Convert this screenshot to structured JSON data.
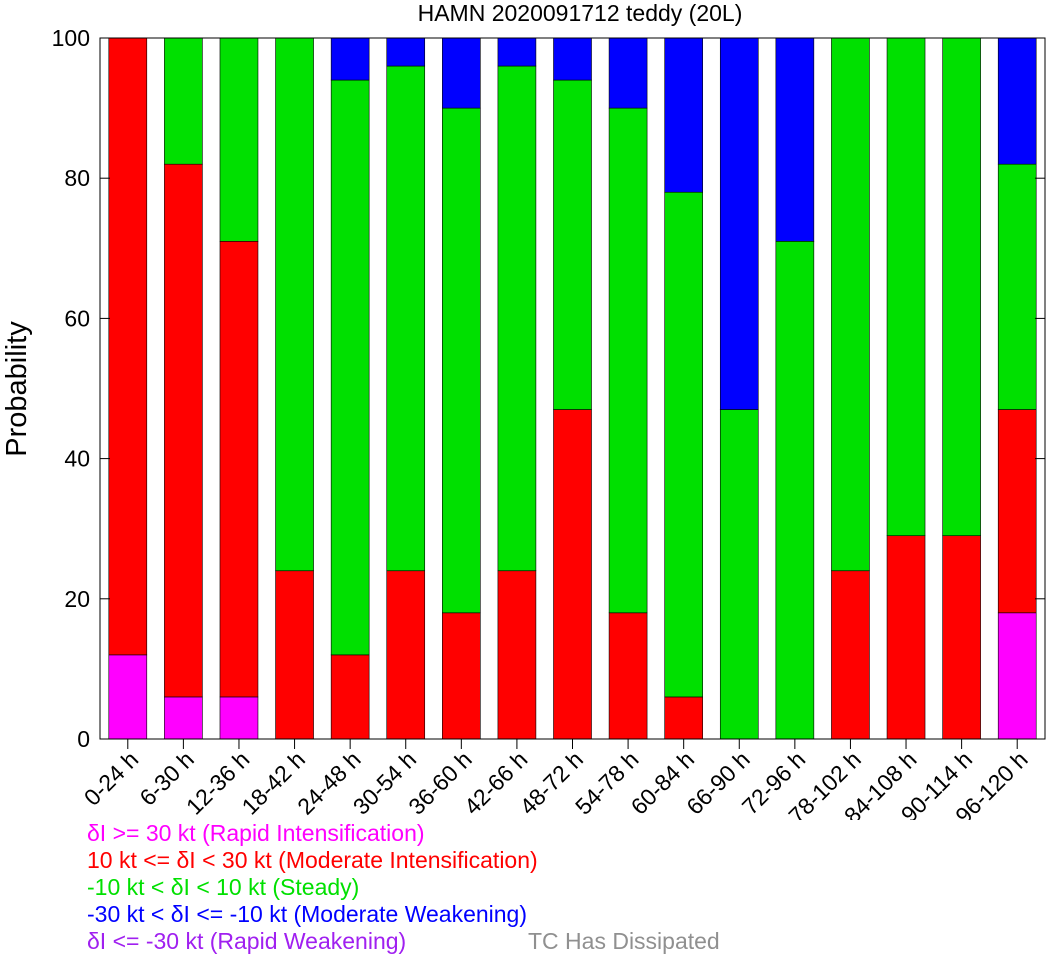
{
  "chart_data": {
    "type": "bar",
    "stacked": true,
    "title": "HAMN 2020091712 teddy (20L)",
    "ylabel": "Probability",
    "xlabel": "",
    "ylim": [
      0,
      100
    ],
    "yticks": [
      "0",
      "20",
      "40",
      "60",
      "80",
      "100"
    ],
    "categories": [
      "0-24 h",
      "6-30 h",
      "12-36 h",
      "18-42 h",
      "24-48 h",
      "30-54 h",
      "36-60 h",
      "42-66 h",
      "48-72 h",
      "54-78 h",
      "60-84 h",
      "66-90 h",
      "72-96 h",
      "78-102 h",
      "84-108 h",
      "90-114 h",
      "96-120 h"
    ],
    "series": [
      {
        "key": "ri",
        "color": "#ff00ff",
        "values": [
          12,
          6,
          6,
          0,
          0,
          0,
          0,
          0,
          0,
          0,
          0,
          0,
          0,
          0,
          0,
          0,
          18
        ]
      },
      {
        "key": "mi",
        "color": "#ff0000",
        "values": [
          88,
          76,
          65,
          24,
          12,
          24,
          18,
          24,
          47,
          18,
          6,
          0,
          0,
          24,
          29,
          29,
          29
        ]
      },
      {
        "key": "steady",
        "color": "#00e000",
        "values": [
          0,
          18,
          29,
          76,
          82,
          72,
          72,
          72,
          47,
          72,
          72,
          47,
          71,
          76,
          71,
          71,
          35
        ]
      },
      {
        "key": "mw",
        "color": "#0000ff",
        "values": [
          0,
          0,
          0,
          0,
          6,
          4,
          10,
          4,
          6,
          10,
          22,
          53,
          29,
          0,
          0,
          0,
          18
        ]
      },
      {
        "key": "rw",
        "color": "#a020f0",
        "values": [
          0,
          0,
          0,
          0,
          0,
          0,
          0,
          0,
          0,
          0,
          0,
          0,
          0,
          0,
          0,
          0,
          0
        ]
      }
    ],
    "grid": false,
    "legend_placement": "bottom-left"
  },
  "legend": [
    {
      "text": "δI >= 30 kt (Rapid Intensification)",
      "color": "#ff00ff"
    },
    {
      "text": "10 kt <= δI < 30 kt (Moderate Intensification)",
      "color": "#ff0000"
    },
    {
      "text": "-10 kt < δI < 10 kt (Steady)",
      "color": "#00e000"
    },
    {
      "text": "-30 kt < δI <= -10 kt (Moderate Weakening)",
      "color": "#0000ff"
    },
    {
      "text": "δI <= -30 kt (Rapid Weakening)",
      "color": "#a020f0"
    }
  ],
  "dissipated": {
    "text": "TC Has Dissipated",
    "color": "#909090"
  }
}
